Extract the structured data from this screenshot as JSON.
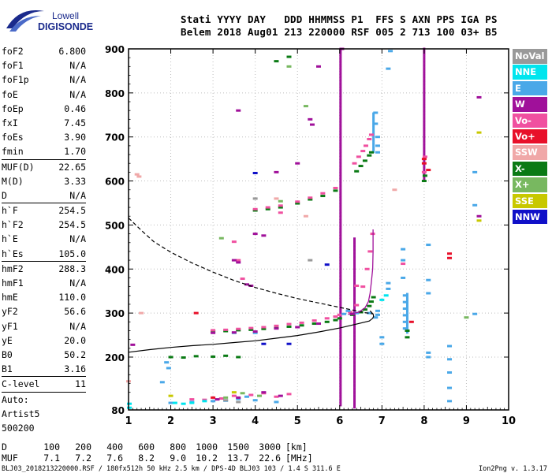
{
  "logo": {
    "line1": "Lowell",
    "line2": "DIGISONDE",
    "color": "#1a2a8c"
  },
  "header": {
    "line1": "Stati YYYY DAY   DDD HHMMSS P1  FFS S AXN PPS IGA PS",
    "line2": "Belem 2018 Aug01 213 220000 RSF 005 2 713 100 03+ B5"
  },
  "params": [
    {
      "name": "foF2",
      "value": "6.800"
    },
    {
      "name": "foF1",
      "value": "N/A"
    },
    {
      "name": "foF1p",
      "value": "N/A"
    },
    {
      "name": "foE",
      "value": "N/A"
    },
    {
      "name": "foEp",
      "value": "0.46"
    },
    {
      "name": "fxI",
      "value": "7.45"
    },
    {
      "name": "foEs",
      "value": "3.90"
    },
    {
      "name": "fmin",
      "value": "1.70"
    },
    {
      "sep": true
    },
    {
      "name": "MUF(D)",
      "value": "22.65"
    },
    {
      "name": "M(D)",
      "value": "3.33"
    },
    {
      "name": "D",
      "value": "N/A"
    },
    {
      "sep": true
    },
    {
      "name": "h`F",
      "value": "254.5"
    },
    {
      "name": "h`F2",
      "value": "254.5"
    },
    {
      "name": "h`E",
      "value": "N/A"
    },
    {
      "name": "h`Es",
      "value": "105.0"
    },
    {
      "sep": true
    },
    {
      "name": "hmF2",
      "value": "288.3"
    },
    {
      "name": "hmF1",
      "value": "N/A"
    },
    {
      "name": "hmE",
      "value": "110.0"
    },
    {
      "name": "yF2",
      "value": "56.6"
    },
    {
      "name": "yF1",
      "value": "N/A"
    },
    {
      "name": "yE",
      "value": "20.0"
    },
    {
      "name": "B0",
      "value": "50.2"
    },
    {
      "name": "B1",
      "value": "3.16"
    },
    {
      "sep": true
    },
    {
      "name": "C-level",
      "value": "11"
    },
    {
      "sep": true
    },
    {
      "name": "Auto:",
      "value": ""
    },
    {
      "name": "Artist5",
      "value": ""
    },
    {
      "name": "500200",
      "value": ""
    }
  ],
  "legend": [
    {
      "label": "NoVal",
      "color": "#999999"
    },
    {
      "label": "NNE",
      "color": "#00e5ee"
    },
    {
      "label": "E",
      "color": "#4aa8e8"
    },
    {
      "label": "W",
      "color": "#a0109a"
    },
    {
      "label": "Vo-",
      "color": "#f050a0"
    },
    {
      "label": "Vo+",
      "color": "#e8102a"
    },
    {
      "label": "SSW",
      "color": "#f0a8a8"
    },
    {
      "label": "X-",
      "color": "#0a7a14"
    },
    {
      "label": "X+",
      "color": "#78b860"
    },
    {
      "label": "SSE",
      "color": "#c8c800"
    },
    {
      "label": "NNW",
      "color": "#1010c8"
    }
  ],
  "distances": {
    "label": "D",
    "values": [
      "100",
      "200",
      "400",
      "600",
      "800",
      "1000",
      "1500",
      "3000"
    ],
    "unit": "[km]"
  },
  "mufs": {
    "label": "MUF",
    "values": [
      "7.1",
      "7.2",
      "7.6",
      "8.2",
      "9.0",
      "10.2",
      "13.7",
      "22.6"
    ],
    "unit": "[MHz]"
  },
  "footer": "BLJ03_2018213220000.RSF / 180fx512h 50 kHz 2.5 km / DPS-4D BLJ03 103 / 1.4 S 311.6 E",
  "version": "Ion2Png v. 1.3.17",
  "chart_data": {
    "type": "scatter",
    "xlim": [
      1,
      10
    ],
    "ylim": [
      80,
      900
    ],
    "xticks": [
      "1",
      "2",
      "3",
      "4",
      "5",
      "6",
      "7",
      "8",
      "9",
      "10"
    ],
    "yticks": [
      "80",
      "200",
      "300",
      "400",
      "500",
      "600",
      "700",
      "800",
      "900"
    ],
    "grid": true,
    "profile_solid": [
      [
        1.0,
        211
      ],
      [
        1.5,
        217
      ],
      [
        2.0,
        222
      ],
      [
        2.5,
        226
      ],
      [
        3.0,
        229
      ],
      [
        3.5,
        233
      ],
      [
        4.0,
        237
      ],
      [
        4.5,
        243
      ],
      [
        5.0,
        249
      ],
      [
        5.5,
        257
      ],
      [
        6.0,
        266
      ],
      [
        6.4,
        275
      ],
      [
        6.7,
        282
      ],
      [
        6.78,
        288
      ],
      [
        6.8,
        292
      ],
      [
        6.8,
        296
      ],
      [
        6.77,
        300
      ],
      [
        6.72,
        305
      ]
    ],
    "profile_dashed": [
      [
        1.0,
        516
      ],
      [
        1.3,
        488
      ],
      [
        1.6,
        462
      ],
      [
        2.0,
        438
      ],
      [
        2.5,
        414
      ],
      [
        3.0,
        393
      ],
      [
        3.5,
        374
      ],
      [
        4.0,
        358
      ],
      [
        4.5,
        345
      ],
      [
        5.0,
        333
      ],
      [
        5.5,
        323
      ],
      [
        6.0,
        313
      ],
      [
        6.3,
        307
      ],
      [
        6.6,
        301
      ],
      [
        6.8,
        298
      ]
    ],
    "trace_curve": [
      [
        6.2,
        297
      ],
      [
        6.45,
        302
      ],
      [
        6.6,
        312
      ],
      [
        6.68,
        326
      ],
      [
        6.72,
        345
      ],
      [
        6.75,
        370
      ],
      [
        6.78,
        400
      ],
      [
        6.79,
        440
      ],
      [
        6.79,
        490
      ]
    ],
    "traces": [
      {
        "series": "X-",
        "points": [
          [
            3.0,
            258
          ],
          [
            3.3,
            259
          ],
          [
            3.6,
            261
          ],
          [
            3.9,
            262
          ],
          [
            4.2,
            264
          ],
          [
            4.5,
            266
          ],
          [
            4.8,
            269
          ],
          [
            5.1,
            272
          ],
          [
            5.4,
            276
          ],
          [
            5.7,
            280
          ],
          [
            5.9,
            284
          ],
          [
            6.0,
            288
          ],
          [
            6.3,
            296
          ],
          [
            6.5,
            302
          ],
          [
            6.6,
            308
          ],
          [
            6.7,
            316
          ],
          [
            6.75,
            326
          ],
          [
            6.8,
            336
          ],
          [
            2.0,
            200
          ],
          [
            2.3,
            199
          ],
          [
            2.6,
            202
          ],
          [
            3.0,
            201
          ],
          [
            3.3,
            203
          ],
          [
            3.6,
            200
          ],
          [
            4.0,
            533
          ],
          [
            4.3,
            536
          ],
          [
            4.6,
            540
          ],
          [
            5.0,
            549
          ],
          [
            5.3,
            558
          ],
          [
            5.6,
            566
          ],
          [
            5.9,
            578
          ],
          [
            6.4,
            622
          ],
          [
            6.5,
            634
          ],
          [
            6.6,
            646
          ],
          [
            6.7,
            658
          ],
          [
            6.75,
            665
          ],
          [
            4.5,
            872
          ],
          [
            4.8,
            882
          ],
          [
            8.0,
            600
          ],
          [
            8.02,
            612
          ],
          [
            7.6,
            260
          ],
          [
            7.6,
            245
          ]
        ]
      },
      {
        "series": "Vo-",
        "points": [
          [
            3.0,
            261
          ],
          [
            3.3,
            262
          ],
          [
            3.6,
            264
          ],
          [
            3.9,
            266
          ],
          [
            4.2,
            268
          ],
          [
            4.5,
            271
          ],
          [
            4.8,
            275
          ],
          [
            5.1,
            278
          ],
          [
            5.4,
            283
          ],
          [
            5.7,
            288
          ],
          [
            5.9,
            292
          ],
          [
            6.0,
            296
          ],
          [
            6.25,
            302
          ],
          [
            6.4,
            318
          ],
          [
            6.55,
            360
          ],
          [
            6.65,
            400
          ],
          [
            6.72,
            440
          ],
          [
            6.78,
            480
          ],
          [
            4.0,
            536
          ],
          [
            4.3,
            540
          ],
          [
            4.6,
            544
          ],
          [
            5.0,
            553
          ],
          [
            5.3,
            562
          ],
          [
            5.6,
            572
          ],
          [
            5.9,
            584
          ],
          [
            6.35,
            640
          ],
          [
            6.45,
            655
          ],
          [
            6.55,
            668
          ],
          [
            6.62,
            680
          ],
          [
            6.7,
            695
          ],
          [
            6.75,
            705
          ],
          [
            2.5,
            104
          ],
          [
            2.8,
            103
          ],
          [
            3.2,
            106
          ],
          [
            3.5,
            112
          ],
          [
            3.9,
            114
          ],
          [
            4.2,
            118
          ],
          [
            4.5,
            110
          ],
          [
            4.8,
            116
          ],
          [
            4.6,
            528
          ],
          [
            3.5,
            462
          ],
          [
            3.6,
            420
          ],
          [
            3.7,
            378
          ],
          [
            6.4,
            362
          ],
          [
            7.5,
            412
          ],
          [
            8.0,
            620
          ],
          [
            8.02,
            655
          ]
        ]
      },
      {
        "series": "E",
        "points": [
          [
            2.0,
            96
          ],
          [
            2.5,
            98
          ],
          [
            3.0,
            100
          ],
          [
            3.3,
            101
          ],
          [
            3.6,
            105
          ],
          [
            3.8,
            110
          ],
          [
            4.0,
            102
          ],
          [
            4.5,
            98
          ],
          [
            6.1,
            298
          ],
          [
            6.2,
            305
          ],
          [
            6.4,
            300
          ],
          [
            6.7,
            300
          ],
          [
            6.9,
            296
          ],
          [
            6.9,
            305
          ],
          [
            6.85,
            290
          ],
          [
            7.2,
            895
          ],
          [
            7.15,
            855
          ],
          [
            6.85,
            755
          ],
          [
            6.85,
            730
          ],
          [
            6.9,
            700
          ],
          [
            6.9,
            680
          ],
          [
            6.9,
            665
          ],
          [
            7.55,
            340
          ],
          [
            7.55,
            325
          ],
          [
            7.55,
            310
          ],
          [
            7.55,
            295
          ],
          [
            7.55,
            280
          ],
          [
            7.55,
            265
          ],
          [
            7.5,
            380
          ],
          [
            7.5,
            420
          ],
          [
            7.5,
            445
          ],
          [
            7.15,
            368
          ],
          [
            7.15,
            355
          ],
          [
            8.1,
            455
          ],
          [
            8.1,
            375
          ],
          [
            8.1,
            345
          ],
          [
            8.1,
            210
          ],
          [
            8.1,
            200
          ],
          [
            8.6,
            225
          ],
          [
            8.6,
            195
          ],
          [
            8.6,
            165
          ],
          [
            8.6,
            130
          ],
          [
            8.6,
            100
          ],
          [
            9.2,
            545
          ],
          [
            9.2,
            620
          ],
          [
            9.2,
            298
          ],
          [
            7.0,
            245
          ],
          [
            7.0,
            230
          ],
          [
            3.5,
            255
          ],
          [
            4.0,
            255
          ],
          [
            1.8,
            143
          ],
          [
            1.9,
            188
          ],
          [
            1.95,
            175
          ]
        ]
      },
      {
        "series": "W",
        "points": [
          [
            3.0,
            255
          ],
          [
            3.5,
            256
          ],
          [
            4.0,
            258
          ],
          [
            4.5,
            265
          ],
          [
            5.0,
            268
          ],
          [
            5.5,
            276
          ],
          [
            6.3,
            298
          ],
          [
            3.1,
            104
          ],
          [
            3.6,
            108
          ],
          [
            4.2,
            120
          ],
          [
            4.6,
            112
          ],
          [
            5.5,
            860
          ],
          [
            4.0,
            480
          ],
          [
            4.2,
            476
          ],
          [
            6.05,
            900
          ],
          [
            3.5,
            420
          ],
          [
            3.6,
            415
          ],
          [
            3.8,
            365
          ],
          [
            3.9,
            362
          ],
          [
            4.5,
            620
          ],
          [
            5.0,
            640
          ],
          [
            5.3,
            740
          ],
          [
            5.35,
            728
          ],
          [
            9.3,
            790
          ],
          [
            9.3,
            520
          ],
          [
            1.1,
            228
          ],
          [
            3.6,
            760
          ]
        ]
      },
      {
        "series": "NNW",
        "points": [
          [
            4.0,
            618
          ],
          [
            5.7,
            410
          ],
          [
            4.2,
            230
          ],
          [
            4.8,
            230
          ]
        ]
      },
      {
        "series": "Vo+",
        "points": [
          [
            8.0,
            650
          ],
          [
            8.0,
            640
          ],
          [
            8.1,
            625
          ],
          [
            8.6,
            435
          ],
          [
            8.6,
            425
          ],
          [
            7.7,
            280
          ],
          [
            3.0,
            108
          ],
          [
            2.6,
            300
          ]
        ]
      },
      {
        "series": "SSW",
        "points": [
          [
            1.2,
            615
          ],
          [
            1.25,
            610
          ],
          [
            1.0,
            145
          ],
          [
            1.3,
            300
          ],
          [
            4.5,
            560
          ],
          [
            5.2,
            520
          ],
          [
            7.3,
            580
          ]
        ]
      },
      {
        "series": "X+",
        "points": [
          [
            3.3,
            108
          ],
          [
            3.7,
            118
          ],
          [
            4.1,
            112
          ],
          [
            4.6,
            554
          ],
          [
            5.2,
            770
          ],
          [
            3.2,
            470
          ],
          [
            4.8,
            860
          ],
          [
            9.0,
            290
          ]
        ]
      },
      {
        "series": "NNE",
        "points": [
          [
            2.1,
            96
          ],
          [
            2.3,
            94
          ],
          [
            2.5,
            96
          ],
          [
            2.8,
            100
          ],
          [
            7.0,
            330
          ],
          [
            7.1,
            340
          ],
          [
            1.02,
            85
          ],
          [
            1.02,
            94
          ]
        ]
      },
      {
        "series": "SSE",
        "points": [
          [
            2.0,
            112
          ],
          [
            9.3,
            710
          ],
          [
            9.3,
            510
          ],
          [
            3.5,
            120
          ]
        ]
      },
      {
        "series": "NoVal",
        "points": [
          [
            3.3,
            102
          ],
          [
            3.6,
            98
          ],
          [
            4.0,
            560
          ],
          [
            5.3,
            420
          ]
        ]
      }
    ],
    "columns": [
      {
        "x": 6.02,
        "from": 90,
        "to": 900,
        "series": "W"
      },
      {
        "x": 6.35,
        "from": 85,
        "to": 470,
        "series": "W"
      },
      {
        "x": 8.0,
        "from": 600,
        "to": 900,
        "series": "W"
      },
      {
        "x": 6.8,
        "from": 665,
        "to": 755,
        "series": "E"
      },
      {
        "x": 7.6,
        "from": 255,
        "to": 345,
        "series": "E"
      }
    ]
  }
}
